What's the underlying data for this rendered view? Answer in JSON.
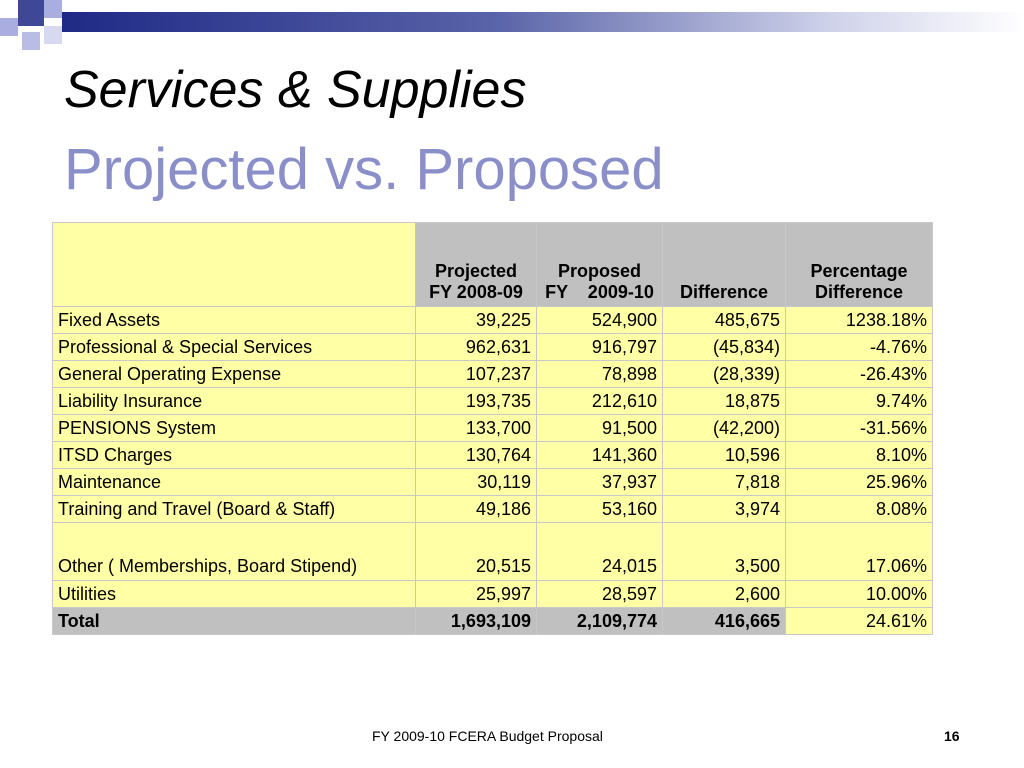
{
  "title": "Services & Supplies",
  "subtitle": "Projected vs. Proposed",
  "table": {
    "headers": [
      {
        "line1": "",
        "line2": ""
      },
      {
        "line1": "Projected",
        "line2": "FY 2008-09"
      },
      {
        "line1": "Proposed",
        "line2": "FY    2009-10"
      },
      {
        "line1": "",
        "line2": "Difference"
      },
      {
        "line1": "Percentage",
        "line2": "Difference"
      }
    ],
    "rows": [
      [
        "Fixed Assets",
        "39,225",
        "524,900",
        "485,675",
        "1238.18%"
      ],
      [
        "Professional & Special Services",
        "962,631",
        "916,797",
        "(45,834)",
        "-4.76%"
      ],
      [
        "General Operating Expense",
        "107,237",
        "78,898",
        "(28,339)",
        "-26.43%"
      ],
      [
        "Liability Insurance",
        "193,735",
        "212,610",
        "18,875",
        "9.74%"
      ],
      [
        "PENSIONS System",
        "133,700",
        "91,500",
        "(42,200)",
        "-31.56%"
      ],
      [
        "ITSD Charges",
        "130,764",
        "141,360",
        "10,596",
        "8.10%"
      ],
      [
        "Maintenance",
        "30,119",
        "37,937",
        "7,818",
        "25.96%"
      ],
      [
        "Training and Travel (Board & Staff)",
        "49,186",
        "53,160",
        "3,974",
        "8.08%"
      ],
      [
        "Other ( Memberships, Board Stipend)",
        "20,515",
        "24,015",
        "3,500",
        "17.06%"
      ],
      [
        "Utilities",
        "25,997",
        "28,597",
        "2,600",
        "10.00%"
      ]
    ],
    "total": [
      "Total",
      "1,693,109",
      "2,109,774",
      "416,665",
      "24.61%"
    ]
  },
  "footer": "FY 2009-10 FCERA Budget Proposal",
  "page_number": "16",
  "colors": {
    "cell_yellow": "#ffffa6",
    "header_grey": "#c0c0c0",
    "subtitle": "#8b8fc9",
    "top_bar": "#1f2a86"
  }
}
